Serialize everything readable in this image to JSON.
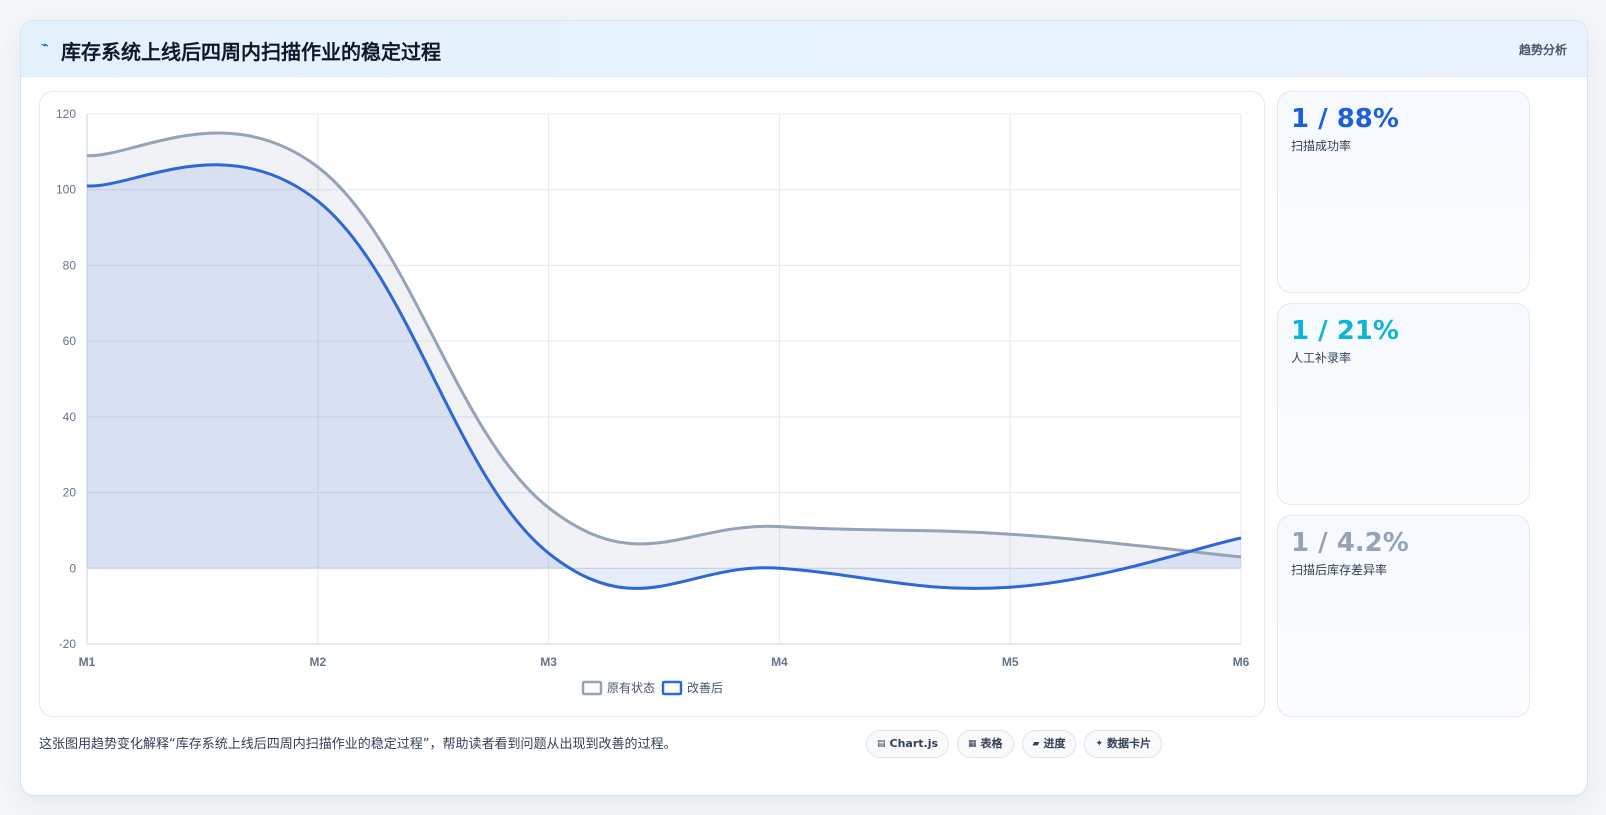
{
  "header": {
    "icon": "trend-icon",
    "title": "库存系统上线后四周内扫描作业的稳定过程",
    "tag": "趋势分析"
  },
  "kpis": [
    {
      "value": "1 / 88%",
      "label": "扫描成功率",
      "color": "#1d5ee0"
    },
    {
      "value": "1 / 21%",
      "label": "人工补录率",
      "color": "#0ab5d6"
    },
    {
      "value": "1 / 4.2%",
      "label": "扫描后库存差异率",
      "color": "#94a3b8"
    }
  ],
  "footer": {
    "text": "这张图用趋势变化解释“库存系统上线后四周内扫描作业的稳定过程”，帮助读者看到问题从出现到改善的过程。",
    "chips": [
      {
        "icon": "chart-icon",
        "glyph": "▤",
        "label": "Chart.js"
      },
      {
        "icon": "table-icon",
        "glyph": "▦",
        "label": "表格"
      },
      {
        "icon": "progress-icon",
        "glyph": "▰",
        "label": "进度"
      },
      {
        "icon": "data-card-icon",
        "glyph": "✦",
        "label": "数据卡片"
      }
    ]
  },
  "chart_data": {
    "type": "line",
    "categories": [
      "M1",
      "M2",
      "M3",
      "M4",
      "M5",
      "M6"
    ],
    "ylim": [
      -20,
      120
    ],
    "yticks": [
      "120",
      "100",
      "80",
      "60",
      "40",
      "20",
      "0",
      "-20"
    ],
    "grid": true,
    "legend_position": "bottom",
    "series": [
      {
        "name": "原有状态",
        "values": [
          109,
          106,
          16,
          11,
          9,
          3
        ],
        "color": "#94a3b8",
        "fill": "rgba(148,163,184,0.14)"
      },
      {
        "name": "改善后",
        "values": [
          101,
          97,
          4,
          0,
          -5,
          8
        ],
        "color": "#2f66d8",
        "fill": "rgba(47,102,216,0.12)"
      }
    ]
  }
}
